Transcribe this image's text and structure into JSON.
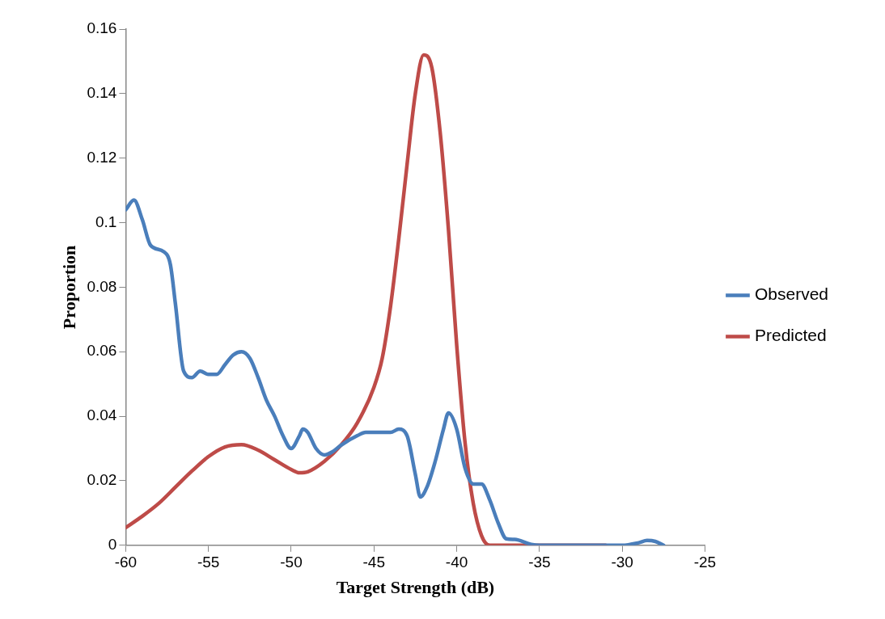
{
  "chart_data": {
    "type": "line",
    "xlabel": "Target Strength (dB)",
    "ylabel": "Proportion",
    "xlim": [
      -60,
      -25
    ],
    "xticks": [
      -60,
      -55,
      -50,
      -45,
      -40,
      -35,
      -30,
      -25
    ],
    "ylim": [
      0,
      0.16
    ],
    "yticks": [
      0,
      0.02,
      0.04,
      0.06,
      0.08,
      0.1,
      0.12,
      0.14,
      0.16
    ],
    "grid": false,
    "legend": "right",
    "marker": "none",
    "line_style": "solid",
    "series": [
      {
        "name": "Observed",
        "color": "#4a7ebb",
        "x": [
          -60,
          -59.5,
          -59,
          -58.5,
          -57.7,
          -57.3,
          -57,
          -56.5,
          -56,
          -55.5,
          -55,
          -54.5,
          -54,
          -53.5,
          -53,
          -52.5,
          -52,
          -51.5,
          -51,
          -50.5,
          -50,
          -49.5,
          -49.3,
          -49,
          -48.5,
          -48,
          -47.5,
          -47,
          -46,
          -45.5,
          -44,
          -43.5,
          -43,
          -42.5,
          -42.2,
          -41.8,
          -41.3,
          -40.8,
          -40.5,
          -40,
          -39.5,
          -39,
          -38.5,
          -38,
          -37.5,
          -37,
          -36.5,
          -35.5,
          -35,
          -30,
          -29,
          -28.5,
          -28,
          -27.5
        ],
        "values": [
          0.104,
          0.107,
          0.101,
          0.093,
          0.091,
          0.087,
          0.075,
          0.054,
          0.052,
          0.054,
          0.053,
          0.053,
          0.056,
          0.059,
          0.06,
          0.058,
          0.052,
          0.045,
          0.04,
          0.034,
          0.03,
          0.034,
          0.036,
          0.035,
          0.03,
          0.028,
          0.029,
          0.031,
          0.034,
          0.035,
          0.035,
          0.036,
          0.034,
          0.022,
          0.015,
          0.018,
          0.026,
          0.036,
          0.041,
          0.036,
          0.024,
          0.019,
          0.019,
          0.014,
          0.007,
          0.002,
          0.0018,
          0.0003,
          0,
          0,
          0.0008,
          0.0015,
          0.0012,
          0
        ]
      },
      {
        "name": "Predicted",
        "color": "#be4b48",
        "x": [
          -60,
          -59,
          -58,
          -57,
          -56,
          -55,
          -54,
          -53,
          -52,
          -51,
          -50,
          -49.5,
          -49,
          -48,
          -47,
          -46,
          -45,
          -44.5,
          -44,
          -43.5,
          -43,
          -42.5,
          -42,
          -41.5,
          -41,
          -40.5,
          -40,
          -39.5,
          -39,
          -38.5,
          -38,
          -35,
          -31
        ],
        "values": [
          0.0055,
          0.009,
          0.013,
          0.018,
          0.023,
          0.0275,
          0.0305,
          0.0312,
          0.0295,
          0.0265,
          0.0235,
          0.0225,
          0.0228,
          0.026,
          0.031,
          0.038,
          0.049,
          0.058,
          0.074,
          0.095,
          0.118,
          0.14,
          0.152,
          0.148,
          0.128,
          0.098,
          0.062,
          0.032,
          0.013,
          0.003,
          0,
          0,
          0
        ]
      }
    ]
  }
}
